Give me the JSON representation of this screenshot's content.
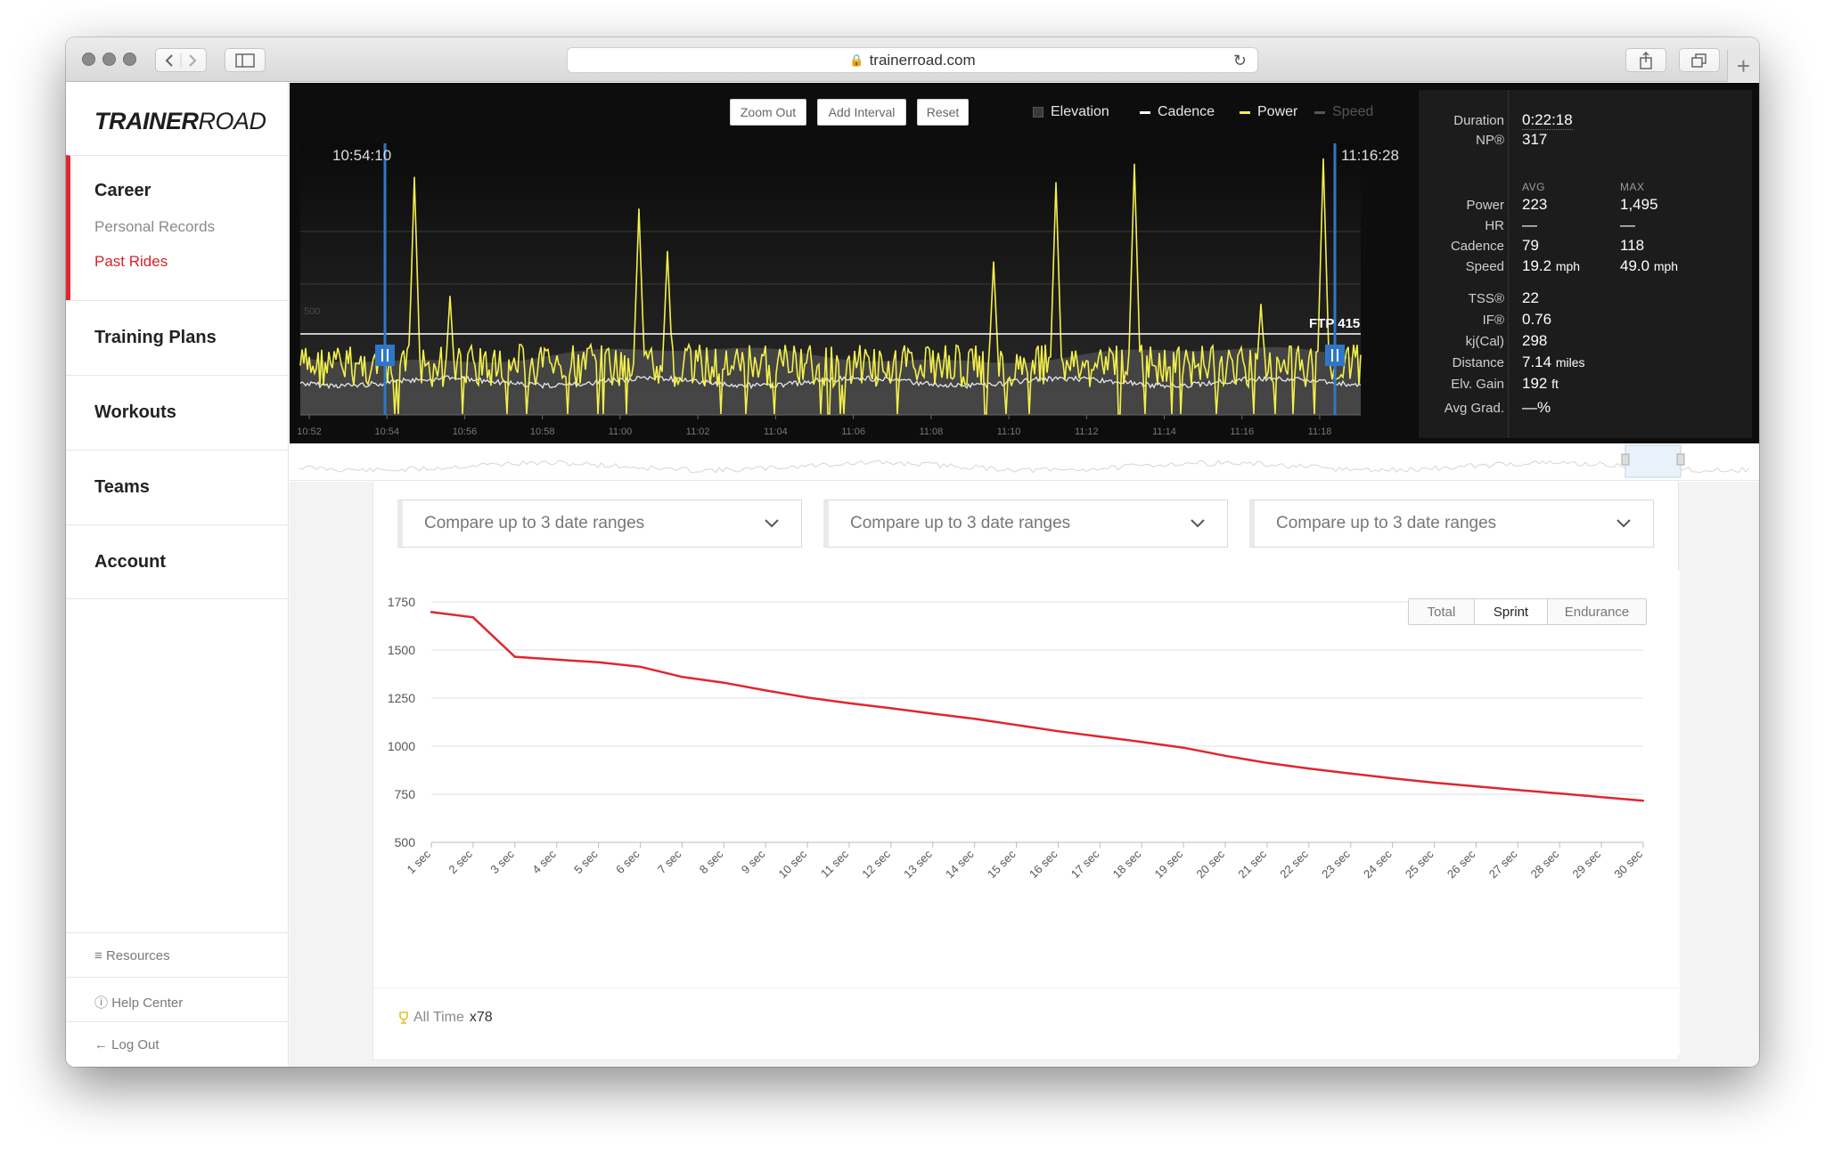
{
  "browser": {
    "url": "trainerroad.com"
  },
  "sidebar": {
    "logo_bold": "TRAINER",
    "logo_light": "ROAD",
    "career": {
      "title": "Career",
      "items": [
        "Personal Records",
        "Past Rides"
      ]
    },
    "sections": [
      "Training Plans",
      "Workouts",
      "Teams",
      "Account"
    ],
    "footer": [
      "Resources",
      "Help Center",
      "Log Out"
    ]
  },
  "ride_chart": {
    "buttons": [
      "Zoom Out",
      "Add Interval",
      "Reset"
    ],
    "legend": [
      {
        "label": "Elevation",
        "color": "#3a3a3a"
      },
      {
        "label": "Cadence",
        "color": "#ffffff"
      },
      {
        "label": "Power",
        "color": "#f3f04b"
      },
      {
        "label": "Speed",
        "color": "#555555"
      }
    ],
    "start_time": "10:54:10",
    "end_time": "11:16:28",
    "y_tick": "500",
    "ftp_label": "FTP 415",
    "x_ticks": [
      "10:52",
      "10:54",
      "10:56",
      "10:58",
      "11:00",
      "11:02",
      "11:04",
      "11:06",
      "11:08",
      "11:10",
      "11:12",
      "11:14",
      "11:16",
      "11:18"
    ]
  },
  "stats": {
    "duration_label": "Duration",
    "duration": "0:22:18",
    "np_label": "NP®",
    "np": "317",
    "avg_header": "AVG",
    "max_header": "MAX",
    "rows": [
      {
        "label": "Power",
        "avg": "223",
        "max": "1,495"
      },
      {
        "label": "HR",
        "avg": "—",
        "max": "—"
      },
      {
        "label": "Cadence",
        "avg": "79",
        "max": "118"
      },
      {
        "label": "Speed",
        "avg": "19.2",
        "avg_unit": "mph",
        "max": "49.0",
        "max_unit": "mph"
      }
    ],
    "extra": [
      {
        "label": "TSS®",
        "value": "22"
      },
      {
        "label": "IF®",
        "value": "0.76"
      },
      {
        "label": "kj(Cal)",
        "value": "298"
      },
      {
        "label": "Distance",
        "value": "7.14",
        "unit": "miles"
      },
      {
        "label": "Elv. Gain",
        "value": "192",
        "unit": "ft"
      },
      {
        "label": "Avg Grad.",
        "value": "—%"
      }
    ]
  },
  "compare": {
    "placeholders": [
      "Compare up to 3 date ranges",
      "Compare up to 3 date ranges",
      "Compare up to 3 date ranges"
    ]
  },
  "power_curve": {
    "tabs": [
      "Total",
      "Sprint",
      "Endurance"
    ],
    "active_tab": "Sprint",
    "footer_label": "All Time",
    "footer_count": "x78"
  },
  "chart_data": {
    "type": "line",
    "categories": [
      "1 sec",
      "2 sec",
      "3 sec",
      "4 sec",
      "5 sec",
      "6 sec",
      "7 sec",
      "8 sec",
      "9 sec",
      "10 sec",
      "11 sec",
      "12 sec",
      "13 sec",
      "14 sec",
      "15 sec",
      "16 sec",
      "17 sec",
      "18 sec",
      "19 sec",
      "20 sec",
      "21 sec",
      "22 sec",
      "23 sec",
      "24 sec",
      "25 sec",
      "26 sec",
      "27 sec",
      "28 sec",
      "29 sec",
      "30 sec"
    ],
    "series": [
      {
        "values": [
          1697,
          1670,
          1465,
          1450,
          1436,
          1413,
          1360,
          1330,
          1290,
          1253,
          1223,
          1197,
          1169,
          1142,
          1110,
          1078,
          1050,
          1022,
          992,
          950,
          913,
          884,
          858,
          833,
          810,
          791,
          772,
          754,
          735,
          716
        ],
        "color": "#e0262e"
      }
    ],
    "yticks": [
      500,
      750,
      1000,
      1250,
      1500,
      1750
    ],
    "ylim": [
      500,
      1750
    ],
    "grid": true
  }
}
